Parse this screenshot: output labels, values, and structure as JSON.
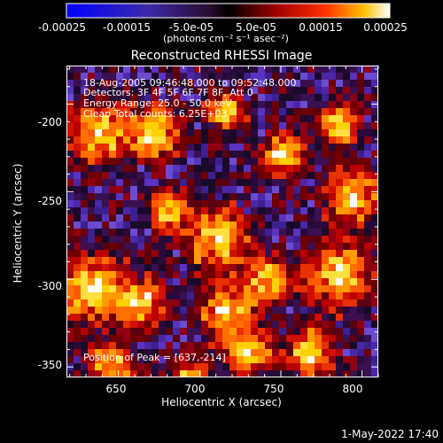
{
  "colorbar": {
    "ticks": [
      "-0.00025",
      "-0.00015",
      "-5.0e-05",
      "5.0e-05",
      "0.00015",
      "0.00025"
    ],
    "units_label": "(photons cm⁻² s⁻¹ asec⁻²)",
    "min": -0.00025,
    "max": 0.00025
  },
  "plot": {
    "title": "Reconstructed RHESSI Image",
    "annotations": [
      "18-Aug-2005 09:46:48.000 to 09:52:48.000",
      "Detectors: 3F 4F 5F 6F 7F 8F, Att 0",
      "Energy Range: 25.0 - 50.0 keV",
      "Clean     Total counts: 6.25E+03"
    ],
    "peak_label": "Position of Peak = [637,-214]",
    "xlabel": "Heliocentric X (arcsec)",
    "ylabel": "Heliocentric Y (arcsec)",
    "x_ticks": [
      "650",
      "700",
      "750",
      "800"
    ],
    "y_ticks": [
      "-200",
      "-250",
      "-300",
      "-350"
    ],
    "x_range": [
      618,
      810
    ],
    "y_range": [
      -356,
      -178
    ]
  },
  "footer": {
    "timestamp": "1-May-2022 17:40"
  }
}
